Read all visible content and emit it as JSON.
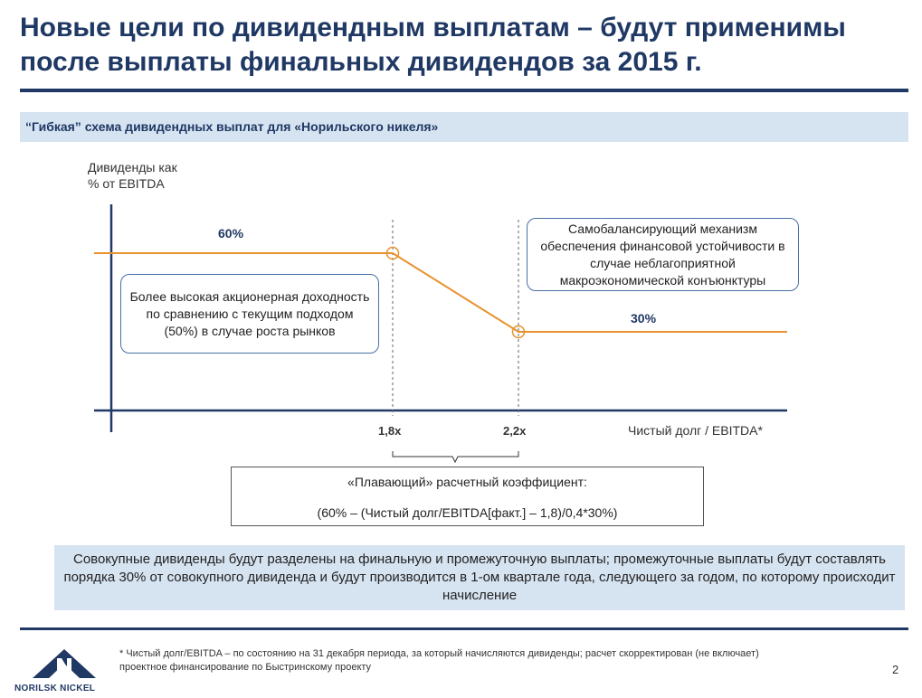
{
  "title": "Новые цели по дивидендным выплатам – будут применимы\nпосле выплаты финальных дивидендов за 2015 г.",
  "subheader": "“Гибкая” схема дивидендных выплат для «Норильского никеля»",
  "chart": {
    "ylabel_line1": "Дивиденды как",
    "ylabel_line2": "% от EBITDA",
    "xlabel": "Чистый долг / EBITDA*",
    "label_high": "60%",
    "label_low": "30%",
    "tick_1": "1,8x",
    "tick_2": "2,2x",
    "box_left": "Более высокая акционерная доходность по сравнению с текущим подходом (50%) в случае роста рынков",
    "box_right": "Самобалансирующий механизм обеспечения финансовой устойчивости в случае неблагоприятной макроэкономической конъюнктуры",
    "line_color": "#e8922e"
  },
  "chart_data": {
    "type": "line",
    "xlabel": "Чистый долг / EBITDA*",
    "ylabel": "Дивиденды как % от EBITDA",
    "x": [
      1.8,
      2.2
    ],
    "y": [
      60,
      30
    ],
    "tick_labels": [
      "1,8x",
      "2,2x"
    ],
    "annotations": [
      "60%",
      "30%"
    ]
  },
  "formula": {
    "line1": "«Плавающий» расчетный коэффициент:",
    "line2": "(60% – (Чистый долг/EBITDA[факт.] – 1,8)/0,4*30%)"
  },
  "note": "Совокупные дивиденды будут разделены на финальную и промежуточную выплаты; промежуточные выплаты будут составлять порядка 30% от совокупного дивиденда и будут производится в 1-ом квартале года, следующего за годом, по которому происходит начисление",
  "footnote": "* Чистый долг/EBITDA – по состоянию на 31 декабря периода, за который начисляются дивиденды; расчет скорректирован (не включает)\n  проектное финансирование по Быстринскому проекту",
  "page_number": "2",
  "logo_text": "NORILSK NICKEL",
  "colors": {
    "brand": "#1f3864",
    "accent": "#e8922e",
    "panel": "#d6e3f1"
  }
}
